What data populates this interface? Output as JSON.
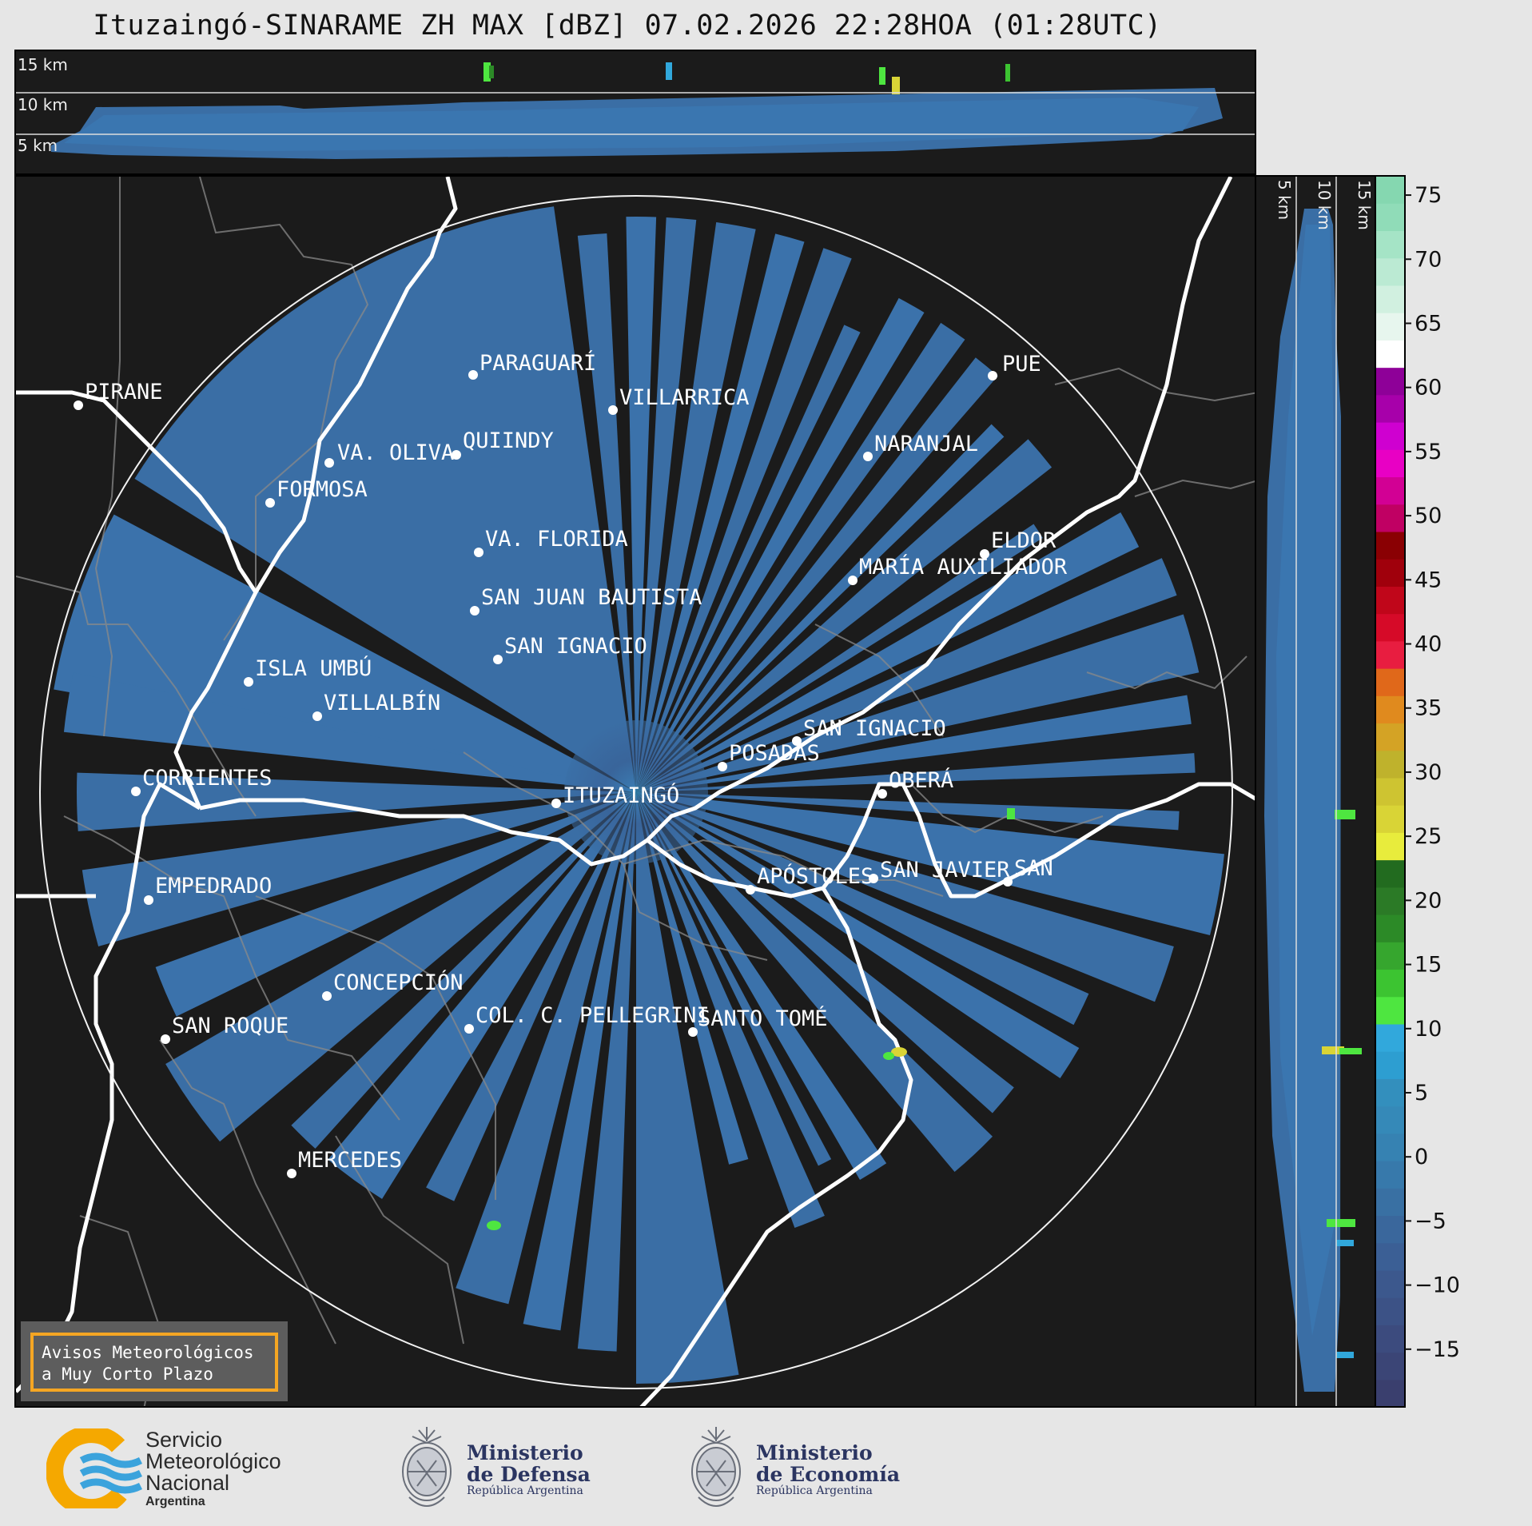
{
  "title": "Ituzaingó-SINARAME ZH MAX [dBZ] 07.02.2026 22:28HOA (01:28UTC)",
  "top_panel": {
    "height_labels": [
      "15 km",
      "10 km",
      "5 km"
    ]
  },
  "right_panel": {
    "height_labels": [
      "5 km",
      "10 km",
      "15 km"
    ]
  },
  "colorbar": {
    "ticks": [
      "75",
      "70",
      "65",
      "60",
      "55",
      "50",
      "45",
      "40",
      "35",
      "30",
      "25",
      "20",
      "15",
      "10",
      "5",
      "0",
      "−5",
      "−10",
      "−15"
    ],
    "colors": [
      "#3a3f6e",
      "#3b4576",
      "#3c4b7e",
      "#3c5286",
      "#3c588d",
      "#3b5f95",
      "#3a679c",
      "#3970a3",
      "#3779ab",
      "#3682b2",
      "#3589b8",
      "#338fbd",
      "#2d9ed1",
      "#31a8dc",
      "#4ee640",
      "#3cc431",
      "#36a62e",
      "#2c8a27",
      "#2b7a26",
      "#226b1f",
      "#e8ec3c",
      "#d9d436",
      "#cec431",
      "#bfb22c",
      "#d4a325",
      "#e08a1e",
      "#e0681a",
      "#e81d40",
      "#d60a28",
      "#c0061a",
      "#a0000c",
      "#8a0003",
      "#c00063",
      "#d20094",
      "#e800c4",
      "#cf00d0",
      "#a700aa",
      "#8e0098",
      "#ffffff",
      "#e7f6ee",
      "#d1f0e0",
      "#bbead3",
      "#a5e4c6",
      "#90dcb8",
      "#85d7b0"
    ]
  },
  "places": [
    {
      "name": "PIRANE"
    },
    {
      "name": "PARAGUARÍ"
    },
    {
      "name": "VILLARRICA"
    },
    {
      "name": "QUIINDY"
    },
    {
      "name": "VA. OLIVA"
    },
    {
      "name": "FORMOSA"
    },
    {
      "name": "NARANJAL"
    },
    {
      "name": "VA. FLORIDA"
    },
    {
      "name": "ELDOR"
    },
    {
      "name": "MARÍA AUXILIADOR"
    },
    {
      "name": "SAN JUAN BAUTISTA"
    },
    {
      "name": "SAN IGNACIO"
    },
    {
      "name": "ISLA UMBÚ"
    },
    {
      "name": "VILLALBÍN"
    },
    {
      "name": "SAN IGNACIO"
    },
    {
      "name": "POSADAS"
    },
    {
      "name": "CORRIENTES"
    },
    {
      "name": "ITUZAINGÓ"
    },
    {
      "name": "OBERÁ"
    },
    {
      "name": "EMPEDRADO"
    },
    {
      "name": "APÓSTOLES"
    },
    {
      "name": "SAN JAVIER"
    },
    {
      "name": "SAN"
    },
    {
      "name": "CONCEPCIÓN"
    },
    {
      "name": "COL. C. PELLEGRINI"
    },
    {
      "name": "SANTO TOMÉ"
    },
    {
      "name": "SAN ROQUE"
    },
    {
      "name": "MERCEDES"
    },
    {
      "name": "PUE"
    }
  ],
  "warning_box": {
    "line1": "Avisos Meteorológicos",
    "line2": "a Muy Corto Plazo"
  },
  "logos": {
    "smn": {
      "line1": "Servicio",
      "line2": "Meteorológico",
      "line3": "Nacional",
      "line4": "Argentina"
    },
    "defensa": {
      "line1": "Ministerio",
      "line2": "de Defensa",
      "line3": "República Argentina"
    },
    "economia": {
      "line1": "Ministerio",
      "line2": "de Economía",
      "line3": "República Argentina"
    }
  },
  "colors": {
    "radar_base": "#3a6ea5",
    "radar_light": "#3b83bd",
    "radar_dark": "#35507e",
    "background": "#1b1b1b",
    "accent_box": "#f5a623"
  }
}
